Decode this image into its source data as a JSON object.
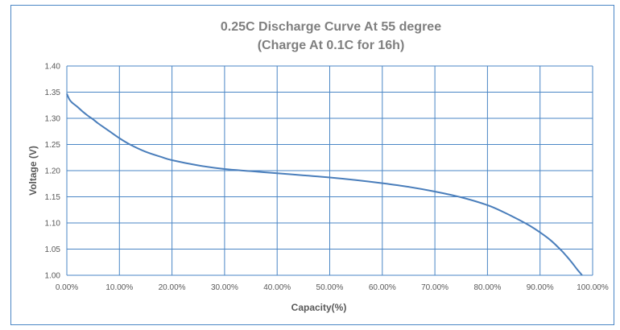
{
  "chart_data": {
    "type": "line",
    "title": "0.25C Discharge Curve At 55 degree",
    "subtitle": "(Charge At 0.1C for 16h)",
    "xlabel": "Capacity(%)",
    "ylabel": "Voltage (V)",
    "xlim": [
      0,
      100
    ],
    "ylim": [
      1.0,
      1.4
    ],
    "x_ticks": [
      "0.00%",
      "10.00%",
      "20.00%",
      "30.00%",
      "40.00%",
      "50.00%",
      "60.00%",
      "70.00%",
      "80.00%",
      "90.00%",
      "100.00%"
    ],
    "y_ticks": [
      "1.00",
      "1.05",
      "1.10",
      "1.15",
      "1.20",
      "1.25",
      "1.30",
      "1.35",
      "1.40"
    ],
    "x_tick_values": [
      0,
      10,
      20,
      30,
      40,
      50,
      60,
      70,
      80,
      90,
      100
    ],
    "y_tick_values": [
      1.0,
      1.05,
      1.1,
      1.15,
      1.2,
      1.25,
      1.3,
      1.35,
      1.4
    ],
    "grid": true,
    "legend": "none",
    "series": [
      {
        "color": "#4a7ebb",
        "x": [
          0,
          0.5,
          1,
          2,
          3,
          4,
          5,
          6,
          8,
          10,
          12,
          15,
          18,
          20,
          25,
          30,
          35,
          40,
          45,
          50,
          55,
          60,
          65,
          70,
          75,
          80,
          83,
          86,
          88,
          90,
          92,
          94,
          95,
          96,
          97,
          97.5,
          98
        ],
        "y": [
          1.347,
          1.336,
          1.33,
          1.322,
          1.313,
          1.305,
          1.298,
          1.29,
          1.276,
          1.262,
          1.25,
          1.236,
          1.226,
          1.22,
          1.21,
          1.203,
          1.199,
          1.195,
          1.191,
          1.187,
          1.182,
          1.176,
          1.169,
          1.16,
          1.149,
          1.134,
          1.121,
          1.106,
          1.095,
          1.082,
          1.067,
          1.048,
          1.037,
          1.025,
          1.012,
          1.006,
          1.0
        ]
      }
    ]
  }
}
